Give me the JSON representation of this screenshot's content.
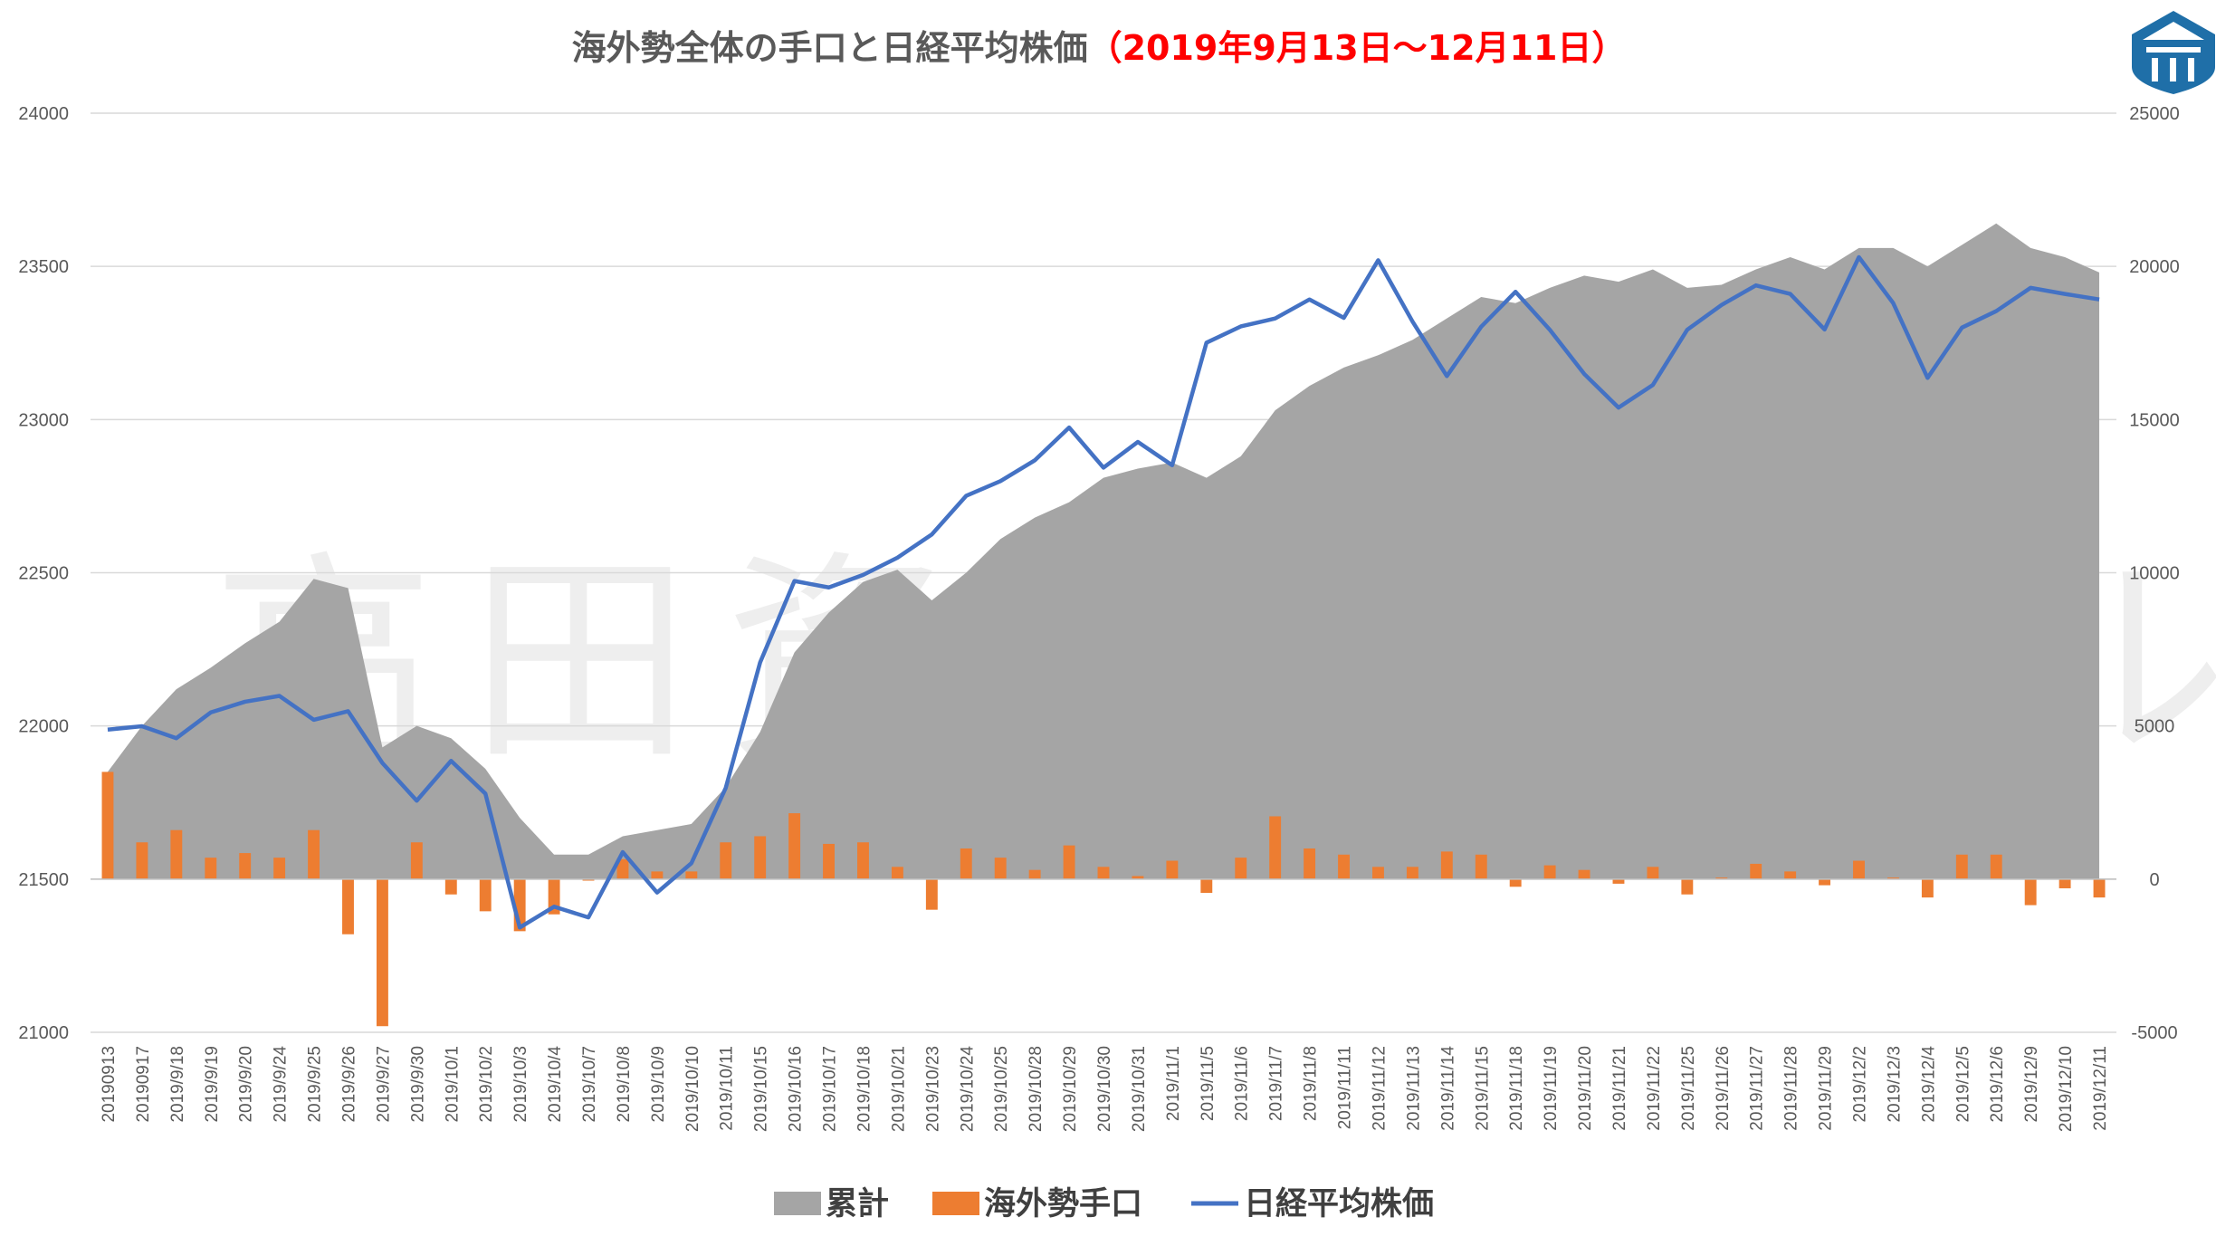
{
  "chart_data": {
    "type": "bar",
    "title": "海外勢全体の手口と日経平均株価",
    "subtitle": "（2019年9月13日〜12月11日）",
    "watermark": "高田資産コンサル",
    "categories": [
      "20190913",
      "20190917",
      "2019/9/18",
      "2019/9/19",
      "2019/9/20",
      "2019/9/24",
      "2019/9/25",
      "2019/9/26",
      "2019/9/27",
      "2019/9/30",
      "2019/10/1",
      "2019/10/2",
      "2019/10/3",
      "2019/10/4",
      "2019/10/7",
      "2019/10/8",
      "2019/10/9",
      "2019/10/10",
      "2019/10/11",
      "2019/10/15",
      "2019/10/16",
      "2019/10/17",
      "2019/10/18",
      "2019/10/21",
      "2019/10/23",
      "2019/10/24",
      "2019/10/25",
      "2019/10/28",
      "2019/10/29",
      "2019/10/30",
      "2019/10/31",
      "2019/11/1",
      "2019/11/5",
      "2019/11/6",
      "2019/11/7",
      "2019/11/8",
      "2019/11/11",
      "2019/11/12",
      "2019/11/13",
      "2019/11/14",
      "2019/11/15",
      "2019/11/18",
      "2019/11/19",
      "2019/11/20",
      "2019/11/21",
      "2019/11/22",
      "2019/11/25",
      "2019/11/26",
      "2019/11/27",
      "2019/11/28",
      "2019/11/29",
      "2019/12/2",
      "2019/12/3",
      "2019/12/4",
      "2019/12/5",
      "2019/12/6",
      "2019/12/9",
      "2019/12/10",
      "2019/12/11"
    ],
    "left_axis": {
      "min": 21000,
      "max": 24000,
      "ticks": [
        21000,
        21500,
        22000,
        22500,
        23000,
        23500,
        24000
      ]
    },
    "right_axis": {
      "min": -5000,
      "max": 25000,
      "ticks": [
        -5000,
        0,
        5000,
        10000,
        15000,
        20000,
        25000
      ]
    },
    "series": [
      {
        "name": "累計",
        "type": "area",
        "axis": "right",
        "color": "#a5a5a5",
        "values": [
          3500,
          5000,
          6200,
          6900,
          7700,
          8400,
          9800,
          9500,
          4300,
          5000,
          4600,
          3600,
          2000,
          800,
          800,
          1400,
          1600,
          1800,
          3000,
          4800,
          7400,
          8700,
          9700,
          10100,
          9100,
          10000,
          11100,
          11800,
          12300,
          13100,
          13400,
          13600,
          13100,
          13800,
          15300,
          16100,
          16700,
          17100,
          17600,
          18300,
          19000,
          18800,
          19300,
          19700,
          19500,
          19900,
          19300,
          19400,
          19900,
          20300,
          19900,
          20600,
          20600,
          20000,
          20700,
          21400,
          20600,
          20300,
          19800
        ]
      },
      {
        "name": "海外勢手口",
        "type": "bar",
        "axis": "right",
        "color": "#ed7d31",
        "values": [
          3500,
          1200,
          1600,
          700,
          850,
          700,
          1600,
          -1800,
          -4800,
          1200,
          -500,
          -1050,
          -1700,
          -1150,
          -50,
          650,
          250,
          250,
          1200,
          1400,
          2150,
          1150,
          1200,
          400,
          -1000,
          1000,
          700,
          300,
          1100,
          400,
          100,
          600,
          -450,
          700,
          2050,
          1000,
          800,
          400,
          400,
          900,
          800,
          -250,
          450,
          300,
          -150,
          400,
          -500,
          50,
          500,
          250,
          -200,
          600,
          50,
          -600,
          800,
          800,
          -850,
          -300,
          -600
        ]
      },
      {
        "name": "日経平均株価",
        "type": "line",
        "axis": "left",
        "color": "#4472c4",
        "values": [
          21988,
          21999,
          21960,
          22044,
          22079,
          22098,
          22020,
          22048,
          21879,
          21756,
          21886,
          21779,
          21342,
          21410,
          21375,
          21588,
          21456,
          21552,
          21798,
          22207,
          22473,
          22452,
          22493,
          22549,
          22625,
          22751,
          22799,
          22867,
          22974,
          22843,
          22927,
          22851,
          23251,
          23304,
          23330,
          23392,
          23332,
          23520,
          23320,
          23142,
          23303,
          23417,
          23293,
          23149,
          23039,
          23113,
          23293,
          23374,
          23438,
          23410,
          23294,
          23530,
          23380,
          23136,
          23300,
          23354,
          23430,
          23410,
          23392
        ]
      }
    ],
    "legend": {
      "position": "bottom",
      "entries": [
        "累計",
        "海外勢手口",
        "日経平均株価"
      ]
    },
    "grid": true
  }
}
